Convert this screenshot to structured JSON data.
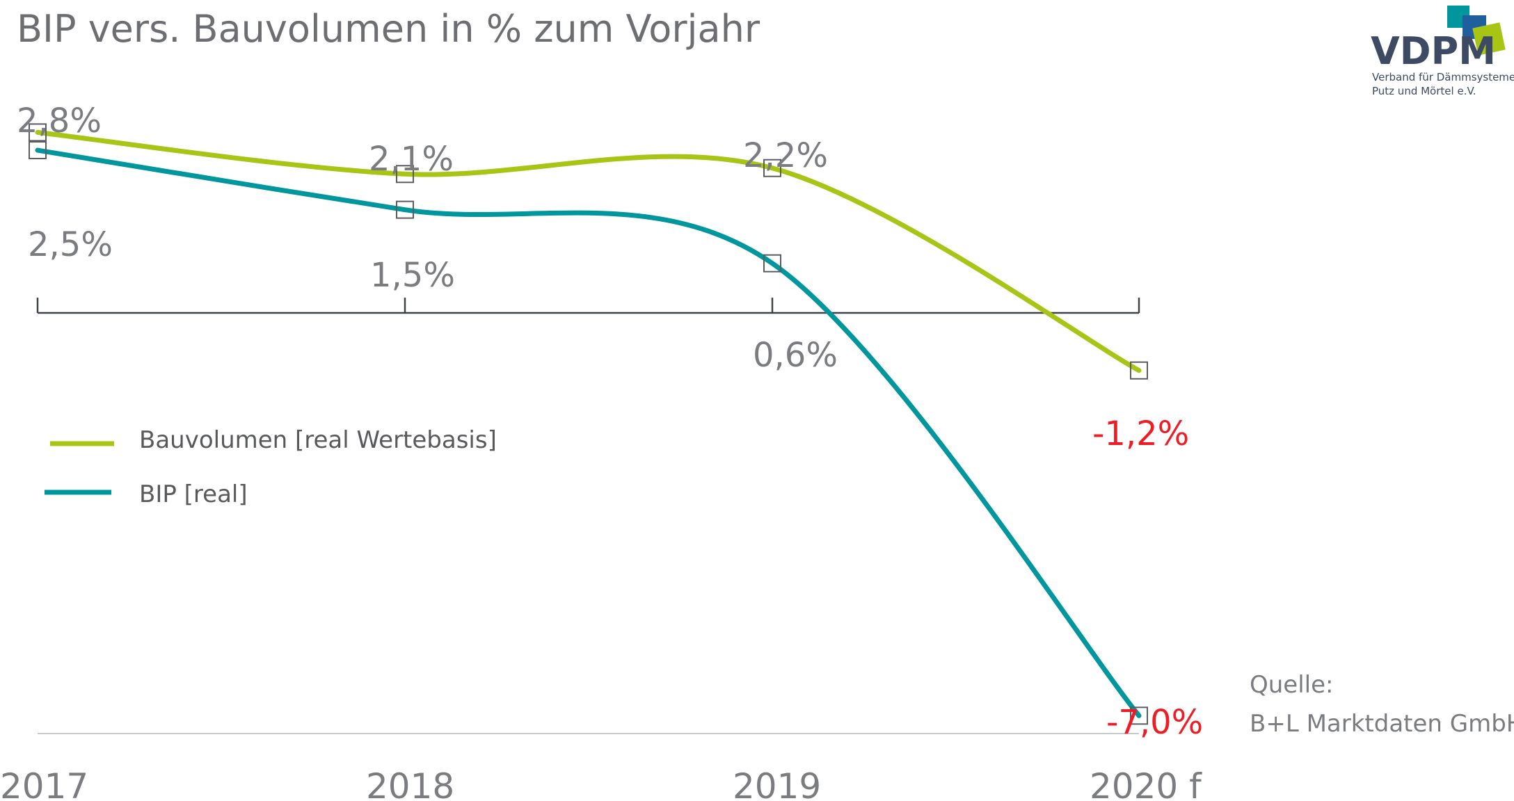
{
  "chart_data": {
    "type": "line",
    "title": "BIP vers. Bauvolumen in % zum Vorjahr",
    "categories": [
      "2017",
      "2018",
      "2019",
      "2020 f"
    ],
    "series": [
      {
        "name": "Bauvolumen [real Wertebasis]",
        "values": [
          2.8,
          2.1,
          2.2,
          -1.2
        ],
        "labels": [
          "2,8%",
          "2,1%",
          "2,2%",
          "-1,2%"
        ],
        "color": "#a8c414"
      },
      {
        "name": "BIP [real]",
        "values": [
          2.5,
          1.5,
          0.6,
          -7.0
        ],
        "labels": [
          "2,5%",
          "1,5%",
          "0,6%",
          "-7,0%"
        ],
        "color": "#00969e"
      }
    ],
    "ylim": [
      -7.3,
      3.4
    ],
    "negative_color": "#ee1c24",
    "grid": false,
    "legend_position": "left-middle"
  },
  "source": {
    "line1": "Quelle:",
    "line2": "B+L Marktdaten GmbH"
  },
  "logo": {
    "name": "VDPM",
    "subtitle_line1": "Verband für Dämmsysteme,",
    "subtitle_line2": "Putz und Mörtel e.V.",
    "colors": [
      "#1f5f9e",
      "#00969e",
      "#a8c414"
    ]
  }
}
